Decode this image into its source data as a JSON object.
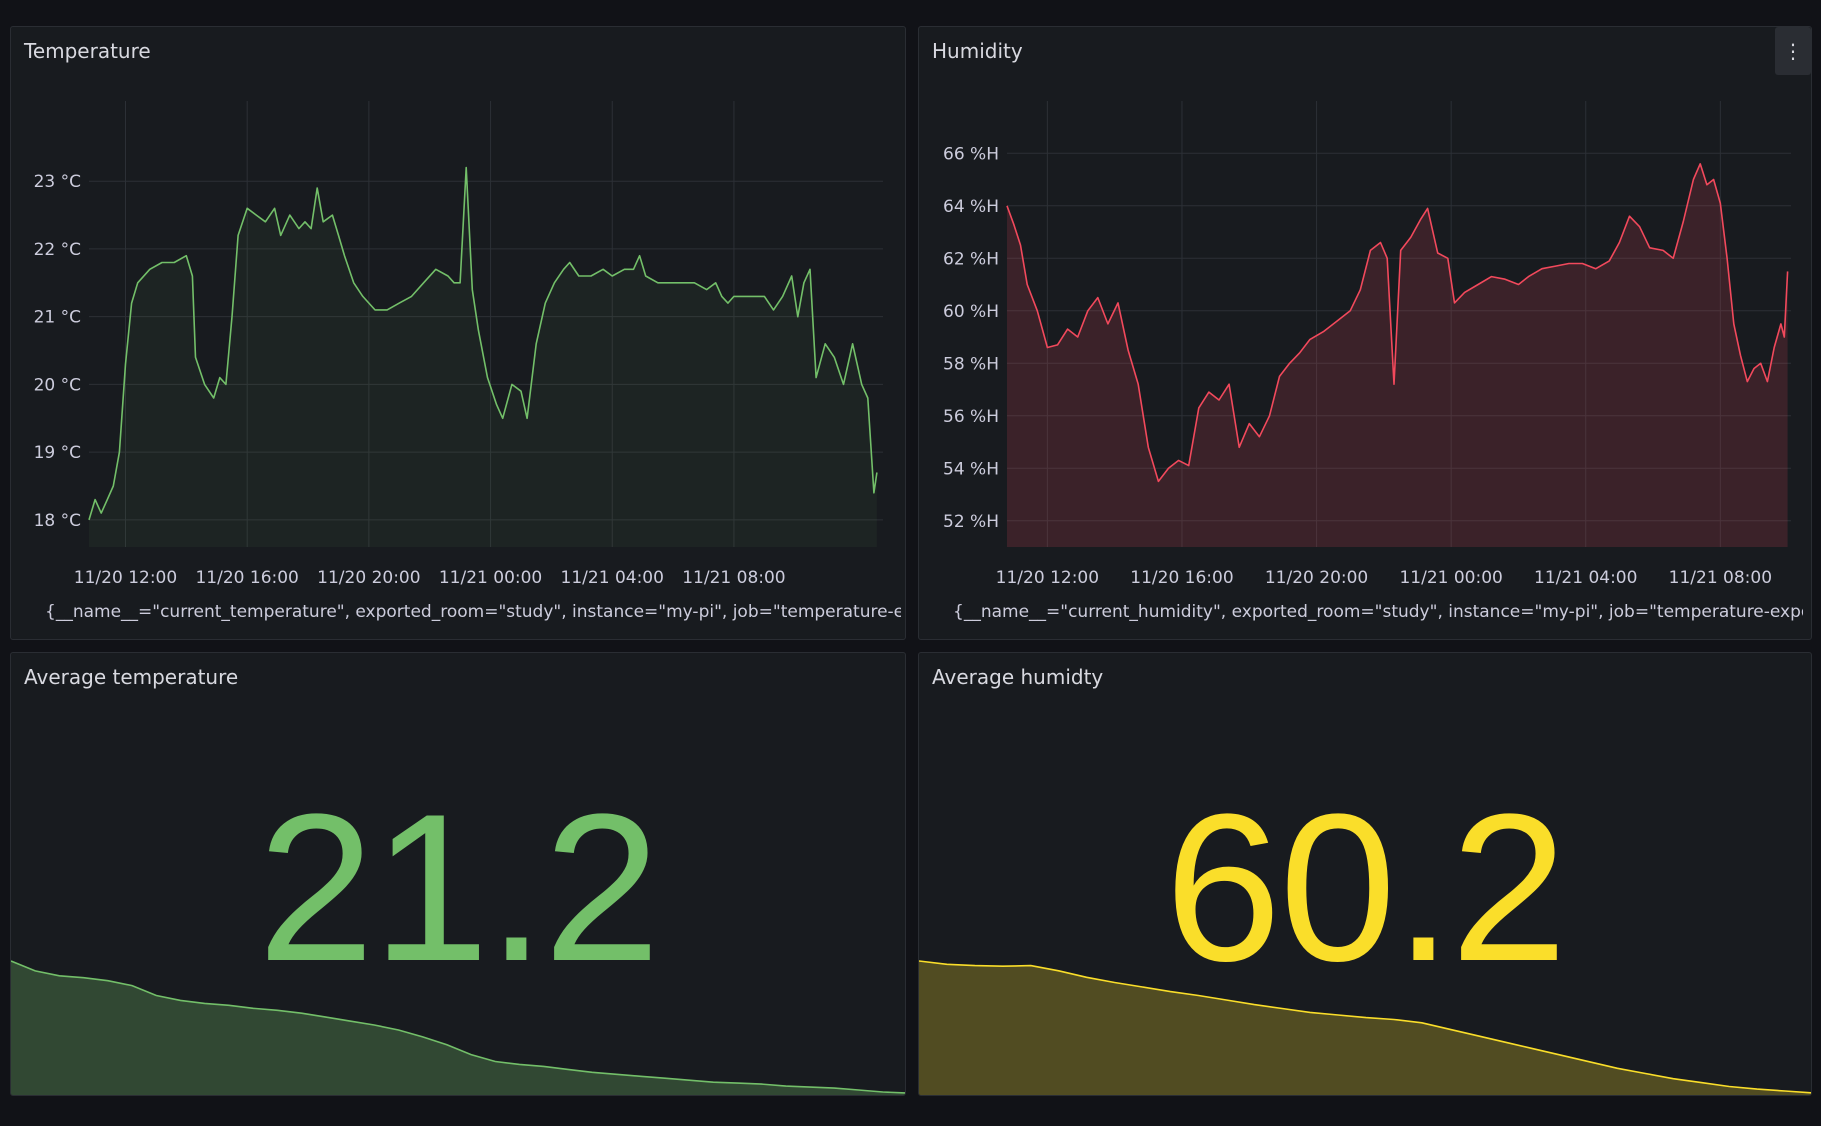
{
  "colors": {
    "background": "#111217",
    "panel": "#181b1f",
    "grid": "#2c3036",
    "temperature": "#73bf69",
    "humidity": "#f2495c",
    "avg_temperature": "#73bf69",
    "avg_humidity": "#fade2a"
  },
  "panels": {
    "temperature": {
      "title": "Temperature",
      "legend": "{__name__=\"current_temperature\", exported_room=\"study\", instance=\"my-pi\", job=\"temperature-exporter\"}"
    },
    "humidity": {
      "title": "Humidity",
      "menu_icon": "vertical-ellipsis-icon",
      "menu_glyph": "⋮",
      "legend": "{__name__=\"current_humidity\", exported_room=\"study\", instance=\"my-pi\", job=\"temperature-exporter\"}"
    },
    "avg_temperature": {
      "title": "Average temperature",
      "value": "21.2"
    },
    "avg_humidity": {
      "title": "Average humidty",
      "value": "60.2"
    }
  },
  "chart_data": [
    {
      "id": "temperature",
      "type": "line",
      "unit": "°C",
      "x_ticks": [
        "11/20 12:00",
        "11/20 16:00",
        "11/20 20:00",
        "11/21 00:00",
        "11/21 04:00",
        "11/21 08:00"
      ],
      "y_ticks": [
        "23 °C",
        "22 °C",
        "21 °C",
        "20 °C",
        "19 °C",
        "18 °C"
      ],
      "ylim": [
        17.6,
        23.8
      ],
      "xlim_hours": [
        10.8,
        34.4
      ],
      "grid": true,
      "legend_position": "bottom",
      "series": [
        {
          "points": [
            [
              10.8,
              18.0
            ],
            [
              11.0,
              18.3
            ],
            [
              11.2,
              18.1
            ],
            [
              11.4,
              18.3
            ],
            [
              11.6,
              18.5
            ],
            [
              11.8,
              19.0
            ],
            [
              12.0,
              20.3
            ],
            [
              12.2,
              21.2
            ],
            [
              12.4,
              21.5
            ],
            [
              12.8,
              21.7
            ],
            [
              13.2,
              21.8
            ],
            [
              13.6,
              21.8
            ],
            [
              14.0,
              21.9
            ],
            [
              14.2,
              21.6
            ],
            [
              14.3,
              20.4
            ],
            [
              14.6,
              20.0
            ],
            [
              14.9,
              19.8
            ],
            [
              15.1,
              20.1
            ],
            [
              15.3,
              20.0
            ],
            [
              15.5,
              21.0
            ],
            [
              15.7,
              22.2
            ],
            [
              16.0,
              22.6
            ],
            [
              16.3,
              22.5
            ],
            [
              16.6,
              22.4
            ],
            [
              16.9,
              22.6
            ],
            [
              17.1,
              22.2
            ],
            [
              17.4,
              22.5
            ],
            [
              17.7,
              22.3
            ],
            [
              17.9,
              22.4
            ],
            [
              18.1,
              22.3
            ],
            [
              18.3,
              22.9
            ],
            [
              18.5,
              22.4
            ],
            [
              18.8,
              22.5
            ],
            [
              19.0,
              22.2
            ],
            [
              19.2,
              21.9
            ],
            [
              19.5,
              21.5
            ],
            [
              19.8,
              21.3
            ],
            [
              20.2,
              21.1
            ],
            [
              20.6,
              21.1
            ],
            [
              21.0,
              21.2
            ],
            [
              21.4,
              21.3
            ],
            [
              21.8,
              21.5
            ],
            [
              22.2,
              21.7
            ],
            [
              22.6,
              21.6
            ],
            [
              22.8,
              21.5
            ],
            [
              23.0,
              21.5
            ],
            [
              23.2,
              23.2
            ],
            [
              23.4,
              21.4
            ],
            [
              23.6,
              20.8
            ],
            [
              23.9,
              20.1
            ],
            [
              24.2,
              19.7
            ],
            [
              24.4,
              19.5
            ],
            [
              24.7,
              20.0
            ],
            [
              25.0,
              19.9
            ],
            [
              25.2,
              19.5
            ],
            [
              25.5,
              20.6
            ],
            [
              25.8,
              21.2
            ],
            [
              26.1,
              21.5
            ],
            [
              26.4,
              21.7
            ],
            [
              26.6,
              21.8
            ],
            [
              26.9,
              21.6
            ],
            [
              27.3,
              21.6
            ],
            [
              27.7,
              21.7
            ],
            [
              28.0,
              21.6
            ],
            [
              28.4,
              21.7
            ],
            [
              28.7,
              21.7
            ],
            [
              28.9,
              21.9
            ],
            [
              29.1,
              21.6
            ],
            [
              29.5,
              21.5
            ],
            [
              29.9,
              21.5
            ],
            [
              30.3,
              21.5
            ],
            [
              30.7,
              21.5
            ],
            [
              31.1,
              21.4
            ],
            [
              31.4,
              21.5
            ],
            [
              31.6,
              21.3
            ],
            [
              31.8,
              21.2
            ],
            [
              32.0,
              21.3
            ],
            [
              32.2,
              21.3
            ],
            [
              32.6,
              21.3
            ],
            [
              33.0,
              21.3
            ],
            [
              33.3,
              21.1
            ],
            [
              33.6,
              21.3
            ],
            [
              33.9,
              21.6
            ],
            [
              34.1,
              21.0
            ],
            [
              34.3,
              21.5
            ],
            [
              34.5,
              21.7
            ],
            [
              34.7,
              20.1
            ],
            [
              35.0,
              20.6
            ],
            [
              35.3,
              20.4
            ],
            [
              35.6,
              20.0
            ],
            [
              35.9,
              20.6
            ],
            [
              36.2,
              20.0
            ],
            [
              36.4,
              19.8
            ],
            [
              36.6,
              18.4
            ],
            [
              36.7,
              18.7
            ]
          ]
        }
      ]
    },
    {
      "id": "humidity",
      "type": "area",
      "unit": "%H",
      "x_ticks": [
        "11/20 12:00",
        "11/20 16:00",
        "11/20 20:00",
        "11/21 00:00",
        "11/21 04:00",
        "11/21 08:00"
      ],
      "y_ticks": [
        "66 %H",
        "64 %H",
        "62 %H",
        "60 %H",
        "58 %H",
        "56 %H",
        "54 %H",
        "52 %H"
      ],
      "ylim": [
        51.0,
        67.0
      ],
      "grid": true,
      "legend_position": "bottom",
      "series": [
        {
          "points": [
            [
              10.8,
              64.0
            ],
            [
              11.0,
              63.3
            ],
            [
              11.2,
              62.5
            ],
            [
              11.4,
              61.0
            ],
            [
              11.7,
              60.0
            ],
            [
              12.0,
              58.6
            ],
            [
              12.3,
              58.7
            ],
            [
              12.6,
              59.3
            ],
            [
              12.9,
              59.0
            ],
            [
              13.2,
              60.0
            ],
            [
              13.5,
              60.5
            ],
            [
              13.8,
              59.5
            ],
            [
              14.1,
              60.3
            ],
            [
              14.4,
              58.5
            ],
            [
              14.7,
              57.2
            ],
            [
              15.0,
              54.8
            ],
            [
              15.3,
              53.5
            ],
            [
              15.6,
              54.0
            ],
            [
              15.9,
              54.3
            ],
            [
              16.2,
              54.1
            ],
            [
              16.5,
              56.3
            ],
            [
              16.8,
              56.9
            ],
            [
              17.1,
              56.6
            ],
            [
              17.4,
              57.2
            ],
            [
              17.7,
              54.8
            ],
            [
              18.0,
              55.7
            ],
            [
              18.3,
              55.2
            ],
            [
              18.6,
              56.0
            ],
            [
              18.9,
              57.5
            ],
            [
              19.2,
              58.0
            ],
            [
              19.5,
              58.4
            ],
            [
              19.8,
              58.9
            ],
            [
              20.2,
              59.2
            ],
            [
              20.6,
              59.6
            ],
            [
              21.0,
              60.0
            ],
            [
              21.3,
              60.8
            ],
            [
              21.6,
              62.3
            ],
            [
              21.9,
              62.6
            ],
            [
              22.1,
              62.0
            ],
            [
              22.3,
              57.2
            ],
            [
              22.5,
              62.3
            ],
            [
              22.8,
              62.8
            ],
            [
              23.1,
              63.5
            ],
            [
              23.3,
              63.9
            ],
            [
              23.6,
              62.2
            ],
            [
              23.9,
              62.0
            ],
            [
              24.1,
              60.3
            ],
            [
              24.4,
              60.7
            ],
            [
              24.8,
              61.0
            ],
            [
              25.2,
              61.3
            ],
            [
              25.6,
              61.2
            ],
            [
              26.0,
              61.0
            ],
            [
              26.3,
              61.3
            ],
            [
              26.7,
              61.6
            ],
            [
              27.1,
              61.7
            ],
            [
              27.5,
              61.8
            ],
            [
              27.9,
              61.8
            ],
            [
              28.3,
              61.6
            ],
            [
              28.7,
              61.9
            ],
            [
              29.0,
              62.6
            ],
            [
              29.3,
              63.6
            ],
            [
              29.6,
              63.2
            ],
            [
              29.9,
              62.4
            ],
            [
              30.3,
              62.3
            ],
            [
              30.6,
              62.0
            ],
            [
              30.9,
              63.4
            ],
            [
              31.2,
              65.0
            ],
            [
              31.4,
              65.6
            ],
            [
              31.6,
              64.8
            ],
            [
              31.8,
              65.0
            ],
            [
              32.0,
              64.1
            ],
            [
              32.2,
              62.0
            ],
            [
              32.4,
              59.5
            ],
            [
              32.6,
              58.3
            ],
            [
              32.8,
              57.3
            ],
            [
              33.0,
              57.8
            ],
            [
              33.2,
              58.0
            ],
            [
              33.4,
              57.3
            ],
            [
              33.6,
              58.6
            ],
            [
              33.8,
              59.5
            ],
            [
              33.9,
              59.0
            ],
            [
              34.0,
              61.5
            ]
          ]
        }
      ]
    },
    {
      "id": "avg_temperature_sparkline",
      "type": "area",
      "series": [
        {
          "values": [
            21.95,
            21.85,
            21.8,
            21.78,
            21.75,
            21.7,
            21.6,
            21.55,
            21.52,
            21.5,
            21.47,
            21.45,
            21.42,
            21.38,
            21.34,
            21.3,
            21.25,
            21.18,
            21.1,
            21.0,
            20.93,
            20.9,
            20.88,
            20.85,
            20.82,
            20.8,
            20.78,
            20.76,
            20.74,
            20.72,
            20.71,
            20.7,
            20.68,
            20.67,
            20.66,
            20.64,
            20.62,
            20.61
          ]
        }
      ]
    },
    {
      "id": "avg_humidity_sparkline",
      "type": "area",
      "series": [
        {
          "values": [
            61.55,
            61.5,
            61.48,
            61.47,
            61.48,
            61.4,
            61.3,
            61.22,
            61.15,
            61.08,
            61.02,
            60.95,
            60.88,
            60.82,
            60.76,
            60.72,
            60.68,
            60.65,
            60.6,
            60.5,
            60.4,
            60.3,
            60.2,
            60.1,
            60.0,
            59.9,
            59.82,
            59.74,
            59.68,
            59.62,
            59.58,
            59.55,
            59.52
          ]
        }
      ]
    }
  ]
}
